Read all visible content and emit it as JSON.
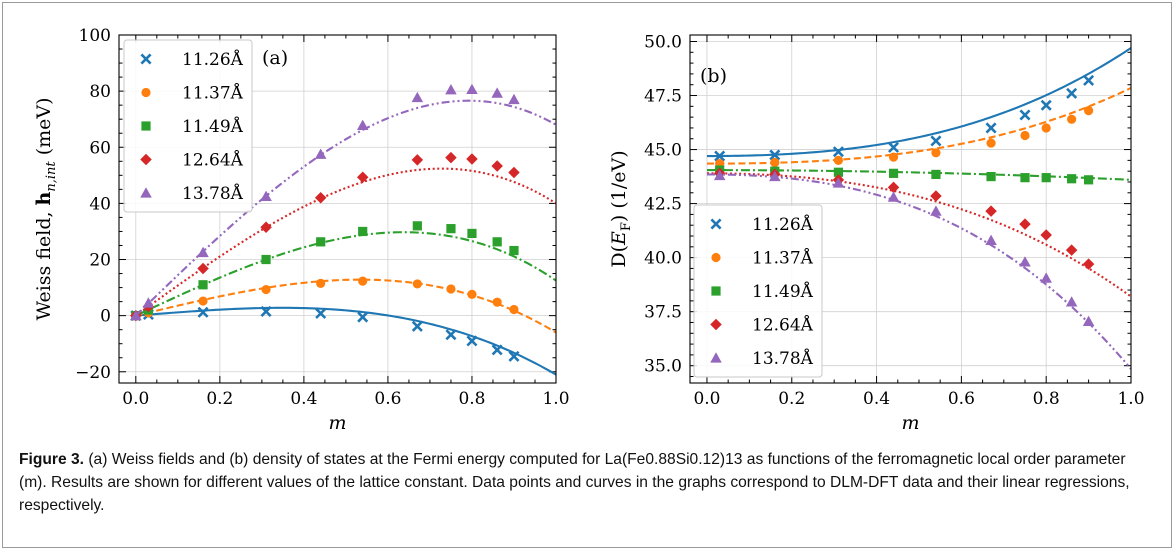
{
  "caption": {
    "label": "Figure 3.",
    "text": "(a) Weiss fields and (b) density of states at the Fermi energy computed for La(Fe0.88Si0.12)13 as functions of the ferromagnetic local order parameter (m). Results are shown for different values of the lattice constant. Data points and curves in the graphs correspond to DLM-DFT data and their linear regressions, respectively."
  },
  "chart_data": [
    {
      "panel": "(a)",
      "type": "scatter",
      "xlabel": "m",
      "ylabel": "Weiss field, h_{n,int} (meV)",
      "xlim": [
        -0.04,
        1.0
      ],
      "ylim": [
        -24,
        100
      ],
      "xticks": [
        "0.0",
        "0.2",
        "0.4",
        "0.6",
        "0.8",
        "1.0"
      ],
      "yticks": [
        "−20",
        "0",
        "20",
        "40",
        "60",
        "80",
        "100"
      ],
      "ytick_values": [
        -20,
        0,
        20,
        40,
        60,
        80,
        100
      ],
      "grid": true,
      "legend_position": "top-left",
      "series": [
        {
          "name": "11.26Å",
          "color": "#1f77b4",
          "marker": "x",
          "linestyle": "solid",
          "x": [
            0.0,
            0.03,
            0.16,
            0.31,
            0.44,
            0.54,
            0.67,
            0.75,
            0.8,
            0.86,
            0.9
          ],
          "y": [
            0.0,
            0.4,
            1.2,
            1.5,
            0.8,
            -0.5,
            -3.8,
            -6.8,
            -9.0,
            -12.2,
            -14.5
          ],
          "fit": [
            0,
            12,
            0,
            -33
          ]
        },
        {
          "name": "11.37Å",
          "color": "#ff7f0e",
          "marker": "o",
          "linestyle": "dashed",
          "x": [
            0.0,
            0.03,
            0.16,
            0.31,
            0.44,
            0.54,
            0.67,
            0.75,
            0.8,
            0.86,
            0.9
          ],
          "y": [
            0.0,
            1.0,
            5.2,
            9.3,
            11.5,
            12.3,
            11.3,
            9.5,
            7.6,
            4.8,
            2.2
          ],
          "fit": [
            0,
            36,
            0,
            -42
          ]
        },
        {
          "name": "11.49Å",
          "color": "#2ca02c",
          "marker": "s",
          "linestyle": "dashdot",
          "x": [
            0.0,
            0.03,
            0.16,
            0.31,
            0.44,
            0.54,
            0.67,
            0.75,
            0.8,
            0.86,
            0.9
          ],
          "y": [
            0.0,
            2.0,
            11.0,
            20.0,
            26.3,
            30.0,
            32.0,
            31.0,
            29.3,
            26.3,
            23.2
          ],
          "fit": [
            0,
            70,
            0,
            -57.5
          ]
        },
        {
          "name": "12.64Å",
          "color": "#d62728",
          "marker": "D",
          "linestyle": "dotted",
          "x": [
            0.0,
            0.03,
            0.16,
            0.31,
            0.44,
            0.54,
            0.67,
            0.75,
            0.8,
            0.86,
            0.9
          ],
          "y": [
            0.0,
            3.2,
            16.8,
            31.5,
            42.0,
            49.3,
            55.5,
            56.3,
            55.8,
            53.3,
            51.0
          ],
          "fit": [
            0,
            108,
            0,
            -68
          ]
        },
        {
          "name": "13.78Å",
          "color": "#9467bd",
          "marker": "^",
          "linestyle": "dashdotdot",
          "x": [
            0.0,
            0.03,
            0.16,
            0.31,
            0.44,
            0.54,
            0.67,
            0.75,
            0.8,
            0.86,
            0.9
          ],
          "y": [
            0.0,
            4.5,
            22.5,
            42.5,
            57.5,
            67.8,
            77.7,
            80.5,
            80.6,
            79.3,
            77.0
          ],
          "fit": [
            0,
            145,
            0,
            -77
          ]
        }
      ]
    },
    {
      "panel": "(b)",
      "type": "scatter",
      "xlabel": "m",
      "ylabel": "D(E_F) (1/eV)",
      "xlim": [
        -0.04,
        1.0
      ],
      "ylim": [
        34.2,
        50.3
      ],
      "xticks": [
        "0.0",
        "0.2",
        "0.4",
        "0.6",
        "0.8",
        "1.0"
      ],
      "yticks": [
        "35.0",
        "37.5",
        "40.0",
        "42.5",
        "45.0",
        "47.5",
        "50.0"
      ],
      "ytick_values": [
        35.0,
        37.5,
        40.0,
        42.5,
        45.0,
        47.5,
        50.0
      ],
      "grid": true,
      "legend_position": "bottom-left",
      "series": [
        {
          "name": "11.26Å",
          "color": "#1f77b4",
          "marker": "x",
          "linestyle": "solid",
          "x": [
            0.03,
            0.16,
            0.31,
            0.44,
            0.54,
            0.67,
            0.75,
            0.8,
            0.86,
            0.9
          ],
          "y": [
            44.7,
            44.75,
            44.9,
            45.1,
            45.4,
            46.0,
            46.6,
            47.05,
            47.6,
            48.2
          ],
          "fit": [
            44.7,
            0,
            2.0,
            3.0
          ]
        },
        {
          "name": "11.37Å",
          "color": "#ff7f0e",
          "marker": "o",
          "linestyle": "dashed",
          "x": [
            0.03,
            0.16,
            0.31,
            0.44,
            0.54,
            0.67,
            0.75,
            0.8,
            0.86,
            0.9
          ],
          "y": [
            44.35,
            44.4,
            44.5,
            44.65,
            44.85,
            45.3,
            45.65,
            46.0,
            46.4,
            46.8
          ],
          "fit": [
            44.35,
            0,
            1.1,
            2.4
          ]
        },
        {
          "name": "11.49Å",
          "color": "#2ca02c",
          "marker": "s",
          "linestyle": "dashdot",
          "x": [
            0.03,
            0.16,
            0.31,
            0.44,
            0.54,
            0.67,
            0.75,
            0.8,
            0.86,
            0.9
          ],
          "y": [
            44.05,
            44.0,
            43.95,
            43.9,
            43.85,
            43.75,
            43.7,
            43.7,
            43.65,
            43.6
          ],
          "fit": [
            44.05,
            0,
            -0.45,
            0
          ]
        },
        {
          "name": "12.64Å",
          "color": "#d62728",
          "marker": "D",
          "linestyle": "dotted",
          "x": [
            0.03,
            0.16,
            0.31,
            0.44,
            0.54,
            0.67,
            0.75,
            0.8,
            0.86,
            0.9
          ],
          "y": [
            43.9,
            43.85,
            43.6,
            43.25,
            42.85,
            42.15,
            41.55,
            41.05,
            40.35,
            39.7
          ],
          "fit": [
            43.9,
            0,
            -3.0,
            -2.7
          ]
        },
        {
          "name": "13.78Å",
          "color": "#9467bd",
          "marker": "^",
          "linestyle": "dashdotdot",
          "x": [
            0.03,
            0.16,
            0.31,
            0.44,
            0.54,
            0.67,
            0.75,
            0.8,
            0.86,
            0.9
          ],
          "y": [
            43.8,
            43.75,
            43.45,
            42.8,
            42.15,
            40.8,
            39.8,
            39.05,
            37.95,
            37.05
          ],
          "fit": [
            43.85,
            0,
            -3.8,
            -5.2
          ]
        }
      ]
    }
  ]
}
